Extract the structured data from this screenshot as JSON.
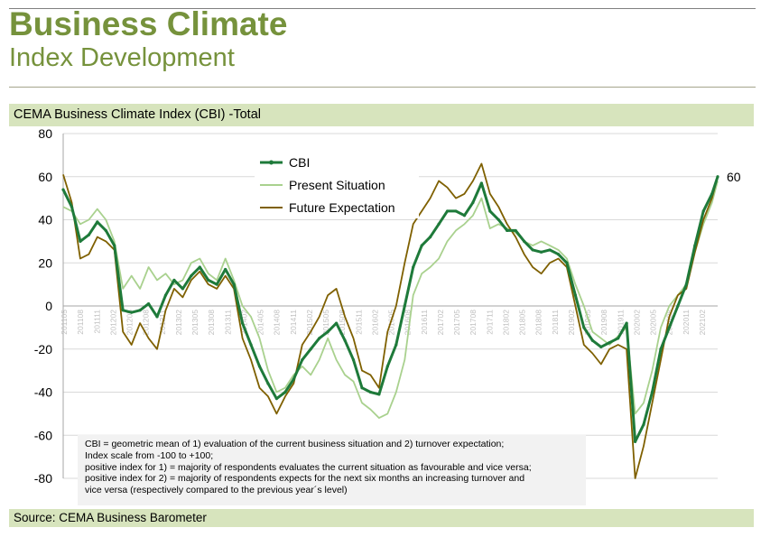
{
  "header": {
    "title": "Business Climate",
    "subtitle": "Index Development"
  },
  "chart_band_label": "CEMA Business Climate Index (CBI) -Total",
  "source_label": "Source: CEMA Business Barometer",
  "notes": [
    "CBI = geometric mean of 1) evaluation of the current business situation and 2) turnover expectation;",
    "Index scale from -100 to +100;",
    "positive index for 1) = majority of respondents evaluates the current situation as favourable and vice versa;",
    "positive index for 2) = majority of respondents expects for the next six months an increasing turnover and",
    "vice versa (respectively compared to the previous year´s level)"
  ],
  "chart_data": {
    "type": "line",
    "ylim": [
      -80,
      80
    ],
    "yticks": [
      80,
      60,
      40,
      20,
      0,
      -20,
      -40,
      -60,
      -80
    ],
    "grid": true,
    "legend_position": "top-center",
    "end_label": "60",
    "xticks": [
      "201105",
      "201108",
      "201111",
      "201202",
      "201205",
      "201208",
      "201211",
      "201302",
      "201305",
      "201308",
      "201311",
      "201402",
      "201405",
      "201408",
      "201411",
      "201502",
      "201505",
      "201508",
      "201511",
      "201602",
      "201605",
      "201608",
      "201611",
      "201702",
      "201705",
      "201708",
      "201711",
      "201802",
      "201805",
      "201808",
      "201811",
      "201902",
      "201905",
      "201908",
      "201911",
      "202002",
      "202005",
      "202008",
      "202011",
      "202102"
    ],
    "series": [
      {
        "name": "CBI",
        "color": "#1e7a3a",
        "points": [
          [
            0,
            54
          ],
          [
            3,
            46
          ],
          [
            6,
            30
          ],
          [
            9,
            33
          ],
          [
            12,
            39
          ],
          [
            15,
            35
          ],
          [
            18,
            28
          ],
          [
            21,
            -2
          ],
          [
            24,
            -3
          ],
          [
            27,
            -2
          ],
          [
            30,
            1
          ],
          [
            33,
            -5
          ],
          [
            36,
            5
          ],
          [
            39,
            12
          ],
          [
            42,
            8
          ],
          [
            45,
            14
          ],
          [
            48,
            18
          ],
          [
            51,
            12
          ],
          [
            54,
            10
          ],
          [
            57,
            17
          ],
          [
            60,
            10
          ],
          [
            63,
            -8
          ],
          [
            66,
            -18
          ],
          [
            69,
            -28
          ],
          [
            72,
            -36
          ],
          [
            75,
            -43
          ],
          [
            78,
            -40
          ],
          [
            81,
            -34
          ],
          [
            84,
            -25
          ],
          [
            87,
            -20
          ],
          [
            90,
            -15
          ],
          [
            93,
            -12
          ],
          [
            96,
            -8
          ],
          [
            99,
            -16
          ],
          [
            102,
            -25
          ],
          [
            105,
            -38
          ],
          [
            108,
            -40
          ],
          [
            111,
            -41
          ],
          [
            114,
            -28
          ],
          [
            117,
            -18
          ],
          [
            120,
            0
          ],
          [
            123,
            18
          ],
          [
            126,
            28
          ],
          [
            129,
            32
          ],
          [
            132,
            38
          ],
          [
            135,
            44
          ],
          [
            138,
            44
          ],
          [
            141,
            42
          ],
          [
            144,
            48
          ],
          [
            147,
            57
          ],
          [
            150,
            44
          ],
          [
            153,
            40
          ],
          [
            156,
            35
          ],
          [
            159,
            35
          ],
          [
            162,
            30
          ],
          [
            165,
            26
          ],
          [
            168,
            25
          ],
          [
            171,
            26
          ],
          [
            174,
            24
          ],
          [
            177,
            20
          ],
          [
            180,
            5
          ],
          [
            183,
            -10
          ],
          [
            186,
            -16
          ],
          [
            189,
            -19
          ],
          [
            192,
            -17
          ],
          [
            195,
            -15
          ],
          [
            198,
            -8
          ],
          [
            201,
            -63
          ],
          [
            204,
            -55
          ],
          [
            207,
            -40
          ],
          [
            210,
            -20
          ],
          [
            213,
            -10
          ],
          [
            216,
            0
          ],
          [
            219,
            10
          ],
          [
            222,
            28
          ],
          [
            225,
            44
          ],
          [
            228,
            52
          ],
          [
            230,
            60
          ]
        ]
      },
      {
        "name": "Present Situation",
        "color": "#a9d18e",
        "points": [
          [
            0,
            46
          ],
          [
            3,
            44
          ],
          [
            6,
            38
          ],
          [
            9,
            40
          ],
          [
            12,
            45
          ],
          [
            15,
            40
          ],
          [
            18,
            30
          ],
          [
            21,
            8
          ],
          [
            24,
            14
          ],
          [
            27,
            8
          ],
          [
            30,
            18
          ],
          [
            33,
            12
          ],
          [
            36,
            15
          ],
          [
            39,
            10
          ],
          [
            42,
            12
          ],
          [
            45,
            20
          ],
          [
            48,
            22
          ],
          [
            51,
            15
          ],
          [
            54,
            12
          ],
          [
            57,
            22
          ],
          [
            60,
            12
          ],
          [
            63,
            0
          ],
          [
            66,
            -5
          ],
          [
            69,
            -15
          ],
          [
            72,
            -30
          ],
          [
            75,
            -40
          ],
          [
            78,
            -38
          ],
          [
            81,
            -32
          ],
          [
            84,
            -28
          ],
          [
            87,
            -32
          ],
          [
            90,
            -25
          ],
          [
            93,
            -15
          ],
          [
            96,
            -25
          ],
          [
            99,
            -32
          ],
          [
            102,
            -35
          ],
          [
            105,
            -45
          ],
          [
            108,
            -48
          ],
          [
            111,
            -52
          ],
          [
            114,
            -50
          ],
          [
            117,
            -40
          ],
          [
            120,
            -25
          ],
          [
            123,
            5
          ],
          [
            126,
            15
          ],
          [
            129,
            18
          ],
          [
            132,
            22
          ],
          [
            135,
            30
          ],
          [
            138,
            35
          ],
          [
            141,
            38
          ],
          [
            144,
            42
          ],
          [
            147,
            50
          ],
          [
            150,
            36
          ],
          [
            153,
            38
          ],
          [
            156,
            36
          ],
          [
            159,
            34
          ],
          [
            162,
            30
          ],
          [
            165,
            28
          ],
          [
            168,
            30
          ],
          [
            171,
            28
          ],
          [
            174,
            26
          ],
          [
            177,
            22
          ],
          [
            180,
            10
          ],
          [
            183,
            0
          ],
          [
            186,
            -12
          ],
          [
            189,
            -15
          ],
          [
            192,
            -18
          ],
          [
            195,
            -14
          ],
          [
            198,
            -10
          ],
          [
            201,
            -50
          ],
          [
            204,
            -45
          ],
          [
            207,
            -30
          ],
          [
            210,
            -10
          ],
          [
            213,
            0
          ],
          [
            216,
            5
          ],
          [
            219,
            10
          ],
          [
            222,
            25
          ],
          [
            225,
            38
          ],
          [
            228,
            48
          ],
          [
            230,
            58
          ]
        ]
      },
      {
        "name": "Future Expectation",
        "color": "#7f6000",
        "points": [
          [
            0,
            61
          ],
          [
            3,
            48
          ],
          [
            6,
            22
          ],
          [
            9,
            24
          ],
          [
            12,
            32
          ],
          [
            15,
            30
          ],
          [
            18,
            26
          ],
          [
            21,
            -12
          ],
          [
            24,
            -18
          ],
          [
            27,
            -8
          ],
          [
            30,
            -15
          ],
          [
            33,
            -20
          ],
          [
            36,
            -2
          ],
          [
            39,
            8
          ],
          [
            42,
            4
          ],
          [
            45,
            12
          ],
          [
            48,
            16
          ],
          [
            51,
            10
          ],
          [
            54,
            8
          ],
          [
            57,
            14
          ],
          [
            60,
            8
          ],
          [
            63,
            -15
          ],
          [
            66,
            -25
          ],
          [
            69,
            -38
          ],
          [
            72,
            -42
          ],
          [
            75,
            -50
          ],
          [
            78,
            -42
          ],
          [
            81,
            -36
          ],
          [
            84,
            -18
          ],
          [
            87,
            -12
          ],
          [
            90,
            -5
          ],
          [
            93,
            5
          ],
          [
            96,
            8
          ],
          [
            99,
            -5
          ],
          [
            102,
            -15
          ],
          [
            105,
            -30
          ],
          [
            108,
            -32
          ],
          [
            111,
            -38
          ],
          [
            114,
            -12
          ],
          [
            117,
            0
          ],
          [
            120,
            20
          ],
          [
            123,
            38
          ],
          [
            126,
            44
          ],
          [
            129,
            50
          ],
          [
            132,
            58
          ],
          [
            135,
            55
          ],
          [
            138,
            50
          ],
          [
            141,
            52
          ],
          [
            144,
            58
          ],
          [
            147,
            66
          ],
          [
            150,
            52
          ],
          [
            153,
            46
          ],
          [
            156,
            38
          ],
          [
            159,
            32
          ],
          [
            162,
            24
          ],
          [
            165,
            18
          ],
          [
            168,
            15
          ],
          [
            171,
            20
          ],
          [
            174,
            22
          ],
          [
            177,
            18
          ],
          [
            180,
            0
          ],
          [
            183,
            -18
          ],
          [
            186,
            -22
          ],
          [
            189,
            -27
          ],
          [
            192,
            -20
          ],
          [
            195,
            -18
          ],
          [
            198,
            -20
          ],
          [
            201,
            -80
          ],
          [
            204,
            -65
          ],
          [
            207,
            -45
          ],
          [
            210,
            -25
          ],
          [
            213,
            -5
          ],
          [
            216,
            5
          ],
          [
            219,
            8
          ],
          [
            222,
            25
          ],
          [
            225,
            40
          ],
          [
            228,
            50
          ],
          [
            230,
            60
          ]
        ]
      }
    ]
  }
}
